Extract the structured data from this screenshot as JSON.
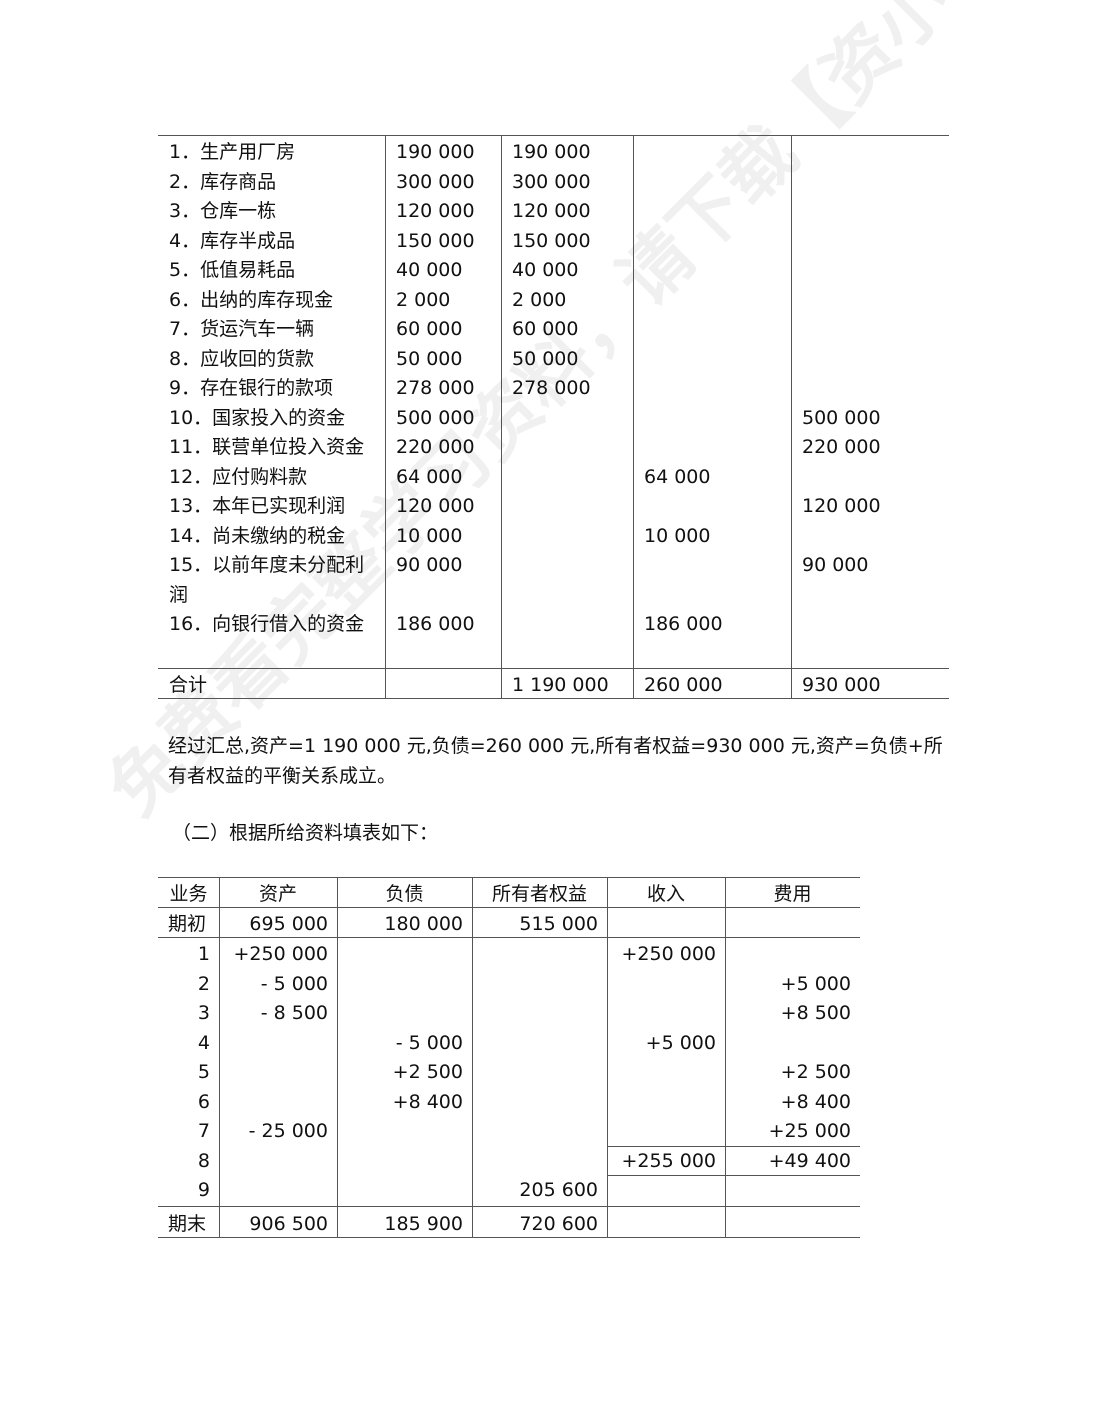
{
  "table1": {
    "rows": [
      [
        "1．生产用厂房",
        "190 000",
        "190 000",
        "",
        ""
      ],
      [
        "2．库存商品",
        "300 000",
        "300 000",
        "",
        ""
      ],
      [
        "3．仓库一栋",
        "120 000",
        "120 000",
        "",
        ""
      ],
      [
        "4．库存半成品",
        "150 000",
        "150 000",
        "",
        ""
      ],
      [
        "5．低值易耗品",
        "40 000",
        "40 000",
        "",
        ""
      ],
      [
        "6．出纳的库存现金",
        "2 000",
        "2 000",
        "",
        ""
      ],
      [
        "7．货运汽车一辆",
        "60 000",
        "60 000",
        "",
        ""
      ],
      [
        "8．应收回的货款",
        "50 000",
        "50 000",
        "",
        ""
      ],
      [
        "9．存在银行的款项",
        "278 000",
        "278 000",
        "",
        ""
      ],
      [
        "10．国家投入的资金",
        "500 000",
        "",
        "",
        "500 000"
      ],
      [
        "11．联营单位投入资金",
        "220 000",
        "",
        "",
        "220 000"
      ],
      [
        "12．应付购料款",
        "64 000",
        "",
        "64 000",
        ""
      ],
      [
        "13．本年已实现利润",
        "120 000",
        "",
        "",
        "120 000"
      ],
      [
        "14．尚未缴纳的税金",
        "10 000",
        "",
        "10 000",
        ""
      ],
      [
        "15．以前年度未分配利",
        "90 000",
        "",
        "",
        "90 000"
      ],
      [
        "润",
        "",
        "",
        "",
        ""
      ],
      [
        "16．向银行借入的资金",
        "186 000",
        "",
        "186 000",
        ""
      ]
    ],
    "total": [
      "合计",
      "",
      "1 190 000",
      "260 000",
      "930 000"
    ]
  },
  "summary": "经过汇总,资产=1 190 000 元,负债=260 000 元,所有者权益=930 000 元,资产=负债+所有者权益的平衡关系成立。",
  "section2_title": "（二）根据所给资料填表如下：",
  "table2": {
    "headers": [
      "业务",
      "资产",
      "负债",
      "所有者权益",
      "收入",
      "费用"
    ],
    "opening": [
      "期初",
      "695 000",
      "180 000",
      "515 000",
      "",
      ""
    ],
    "rows": [
      [
        "1",
        "+250 000",
        "",
        "",
        "+250 000",
        ""
      ],
      [
        "2",
        "- 5 000",
        "",
        "",
        "",
        "+5 000"
      ],
      [
        "3",
        "- 8 500",
        "",
        "",
        "",
        "+8 500"
      ],
      [
        "4",
        "",
        "- 5 000",
        "",
        "+5 000",
        ""
      ],
      [
        "5",
        "",
        "+2 500",
        "",
        "",
        "+2 500"
      ],
      [
        "6",
        "",
        "+8 400",
        "",
        "",
        "+8 400"
      ],
      [
        "7",
        "- 25 000",
        "",
        "",
        "",
        "+25 000"
      ],
      [
        "8",
        "",
        "",
        "",
        "+255 000",
        "+49 400"
      ],
      [
        "9",
        "",
        "",
        "205 600",
        "",
        ""
      ]
    ],
    "closing": [
      "期末",
      "906 500",
      "185 900",
      "720 600",
      "",
      ""
    ]
  },
  "watermark": "免费看完整学习资料，请下载【资小料】APP"
}
